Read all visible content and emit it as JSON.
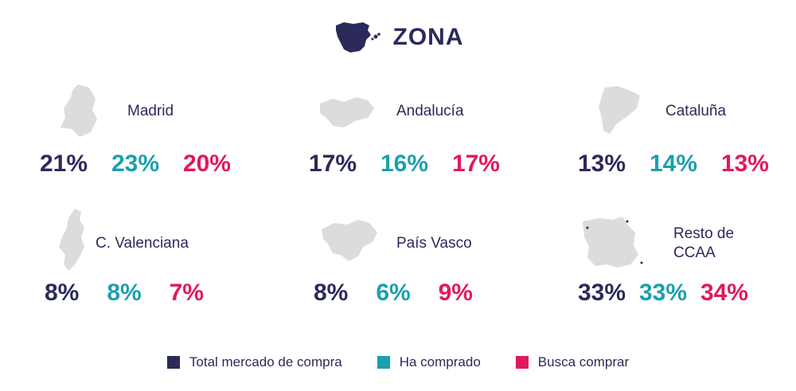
{
  "header": {
    "title": "ZONA",
    "icon": "spain-map-icon"
  },
  "colors": {
    "total": "#2b2a5a",
    "bought": "#1c9fae",
    "seek": "#e3185c",
    "map": "#dcdcdc"
  },
  "chart_data": {
    "type": "table",
    "columns": [
      "Total mercado de compra",
      "Ha comprado",
      "Busca comprar"
    ],
    "unit": "%",
    "rows": [
      {
        "region": "Madrid",
        "values": [
          "21%",
          "23%",
          "20%"
        ]
      },
      {
        "region": "Andalucía",
        "values": [
          "17%",
          "16%",
          "17%"
        ]
      },
      {
        "region": "Cataluña",
        "values": [
          "13%",
          "14%",
          "13%"
        ]
      },
      {
        "region": "C. Valenciana",
        "values": [
          "8%",
          "8%",
          "7%"
        ]
      },
      {
        "region": "País Vasco",
        "values": [
          "8%",
          "6%",
          "9%"
        ]
      },
      {
        "region": "Resto de CCAA",
        "values": [
          "33%",
          "33%",
          "34%"
        ]
      }
    ]
  },
  "legend": [
    {
      "label": "Total mercado de compra",
      "color": "#2b2a5a"
    },
    {
      "label": "Ha comprado",
      "color": "#1c9fae"
    },
    {
      "label": "Busca comprar",
      "color": "#e3185c"
    }
  ]
}
